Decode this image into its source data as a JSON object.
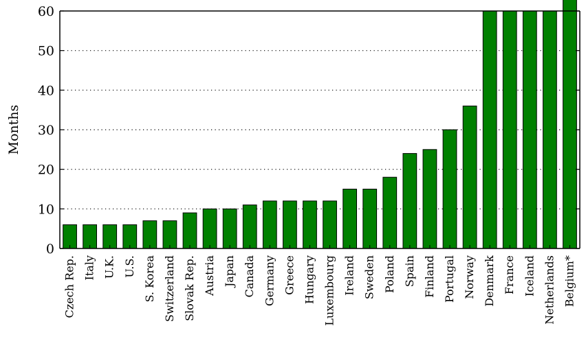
{
  "chart_data": {
    "type": "bar",
    "ylabel": "Months",
    "xlabel": "",
    "ylim": [
      0,
      60
    ],
    "yticks": [
      0,
      10,
      20,
      30,
      40,
      50,
      60
    ],
    "grid": "y-dotted",
    "bar_color": "#008000",
    "bar_outline": "#000000",
    "categories": [
      "Czech Rep.",
      "Italy",
      "U.K.",
      "U.S.",
      "S. Korea",
      "Switzerland",
      "Slovak Rep.",
      "Austria",
      "Japan",
      "Canada",
      "Germany",
      "Greece",
      "Hungary",
      "Luxembourg",
      "Ireland",
      "Sweden",
      "Poland",
      "Spain",
      "Finland",
      "Portugal",
      "Norway",
      "Denmark",
      "France",
      "Iceland",
      "Netherlands",
      "Belgium*"
    ],
    "values": [
      6,
      6,
      6,
      6,
      7,
      7,
      9,
      10,
      10,
      11,
      12,
      12,
      12,
      12,
      15,
      15,
      18,
      24,
      25,
      30,
      36,
      60,
      60,
      60,
      60,
      65
    ]
  }
}
